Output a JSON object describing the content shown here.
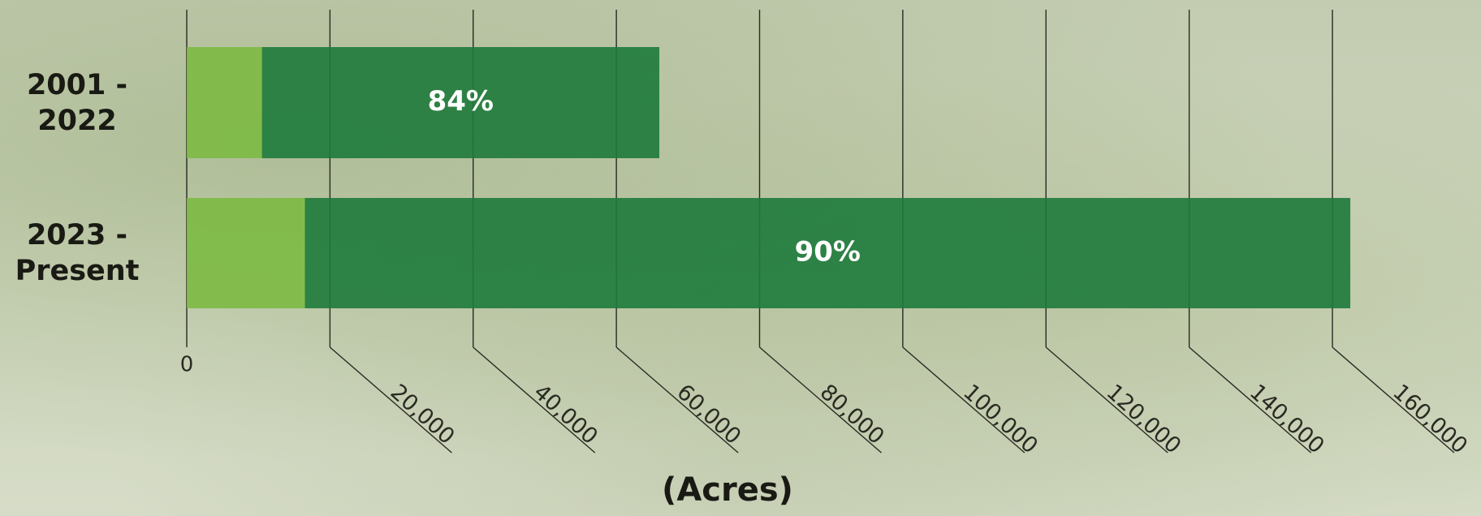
{
  "chart_data": {
    "type": "bar",
    "orientation": "horizontal",
    "stacked": true,
    "categories": [
      "2001 - 2022",
      "2023 - Present"
    ],
    "series": [
      {
        "color": "#7cba42",
        "values": [
          10500,
          16500
        ]
      },
      {
        "color": "#1e7a3b",
        "values": [
          55500,
          146000
        ],
        "labels": [
          "84%",
          "90%"
        ]
      }
    ],
    "xlim": [
      0,
      160000
    ],
    "xticks": [
      0,
      {
        "value": 20000,
        "label": "20,000"
      },
      {
        "value": 40000,
        "label": "40,000"
      },
      {
        "value": 60000,
        "label": "60,000"
      },
      {
        "value": 80000,
        "label": "80,000"
      },
      {
        "value": 100000,
        "label": "100,000"
      },
      {
        "value": 120000,
        "label": "120,000"
      },
      {
        "value": 140000,
        "label": "140,000"
      },
      {
        "value": 160000,
        "label": "160,000"
      }
    ],
    "x_label": "(Acres)"
  }
}
